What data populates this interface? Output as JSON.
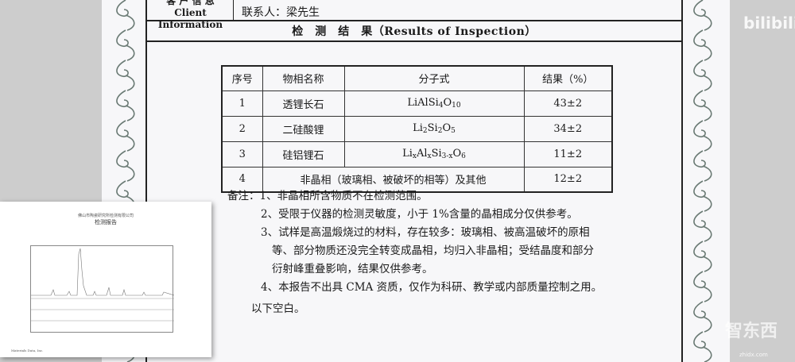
{
  "client": {
    "label_cn": "客 户 信 息",
    "label_en": "Client Information",
    "contact": "联系人：梁先生"
  },
  "results_title": "检　测　结　果（Results of Inspection）",
  "table": {
    "headers": [
      "序号",
      "物相名称",
      "分子式",
      "结果（%）"
    ],
    "rows": [
      {
        "no": "1",
        "name": "透锂长石",
        "formula_html": "LiAlSi<sub>4</sub>O<sub>10</sub>",
        "result": "43±2"
      },
      {
        "no": "2",
        "name": "二硅酸锂",
        "formula_html": "Li<sub>2</sub>Si<sub>2</sub>O<sub>5</sub>",
        "result": "34±2"
      },
      {
        "no": "3",
        "name": "硅铝锂石",
        "formula_html": "Li<sub>x</sub>Al<sub>x</sub>Si<sub>3-x</sub>O<sub>6</sub>",
        "result": "11±2"
      },
      {
        "no": "4",
        "name": "非晶相（玻璃相、被破坏的相等）及其他",
        "result": "12±2"
      }
    ]
  },
  "notes": {
    "n1": "备注：1、非晶相所含物质不在检测范围。",
    "n2": "2、受限于仪器的检测灵敏度，小于 1%含量的晶相成分仅供参考。",
    "n3a": "3、试样是高温煅烧过的材料，存在较多：玻璃相、被高温破坏的原相",
    "n3b": "等、部分物质还没完全转变成晶相，均归入非晶相；受结晶度和部分",
    "n3c": "衍射峰重叠影响，结果仅供参考。",
    "n4": "4、本报告不出具 CMA 资质，仅作为科研、教学或内部质量控制之用。",
    "end": "以下空白。"
  },
  "inset": {
    "company": "佛山市陶瓷研究所检测有限公司",
    "title": "检测报告",
    "footer_left": "Materials Data, Inc."
  },
  "watermarks": {
    "bilibili": "bilibili",
    "zhidx": "智东西",
    "zhidx_url": "zhidx.com"
  }
}
